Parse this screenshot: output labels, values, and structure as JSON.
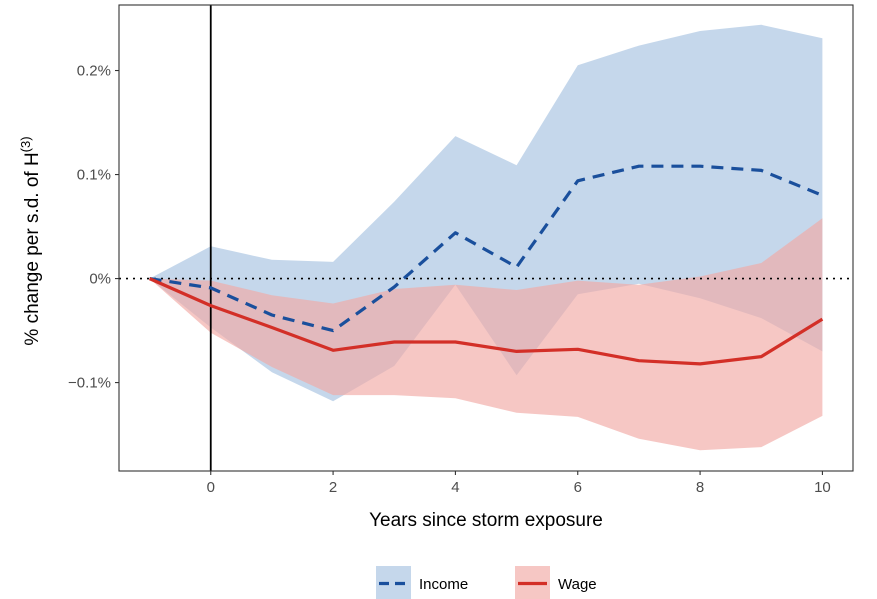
{
  "chart_data": {
    "type": "line",
    "xlabel": "Years since storm exposure",
    "ylabel_main": "% change per s.d. of H",
    "ylabel_sup": "(3)",
    "xlim": [
      -1.5,
      10.5
    ],
    "ylim": [
      -0.185,
      0.263
    ],
    "x_ticks": [
      0,
      2,
      4,
      6,
      8,
      10
    ],
    "y_ticks": [
      {
        "value": 0.2,
        "label": "0.2%"
      },
      {
        "value": 0.1,
        "label": "0.1%"
      },
      {
        "value": 0.0,
        "label": "0%"
      },
      {
        "value": -0.1,
        "label": "−0.1%"
      }
    ],
    "reference_lines": {
      "horizontal_dotted_at": 0,
      "vertical_solid_at": 0
    },
    "legend_position": "bottom",
    "series": [
      {
        "name": "Income",
        "line_style": "dashed",
        "color": "#1a4f9c",
        "band_color": "#a7c2e0",
        "x": [
          -1,
          0,
          1,
          2,
          3,
          4,
          5,
          6,
          7,
          8,
          9,
          10
        ],
        "y": [
          0.0,
          -0.009,
          -0.035,
          -0.05,
          -0.008,
          0.044,
          0.011,
          0.094,
          0.108,
          0.108,
          0.104,
          0.08
        ],
        "lower": [
          0.0,
          -0.047,
          -0.09,
          -0.118,
          -0.084,
          -0.006,
          -0.093,
          -0.015,
          -0.005,
          -0.019,
          -0.038,
          -0.07
        ],
        "upper": [
          0.0,
          0.031,
          0.018,
          0.016,
          0.074,
          0.137,
          0.109,
          0.205,
          0.224,
          0.238,
          0.244,
          0.231
        ]
      },
      {
        "name": "Wage",
        "line_style": "solid",
        "color": "#d32f27",
        "band_color": "#f2aaa6",
        "x": [
          -1,
          0,
          1,
          2,
          3,
          4,
          5,
          6,
          7,
          8,
          9,
          10
        ],
        "y": [
          0.0,
          -0.026,
          -0.047,
          -0.069,
          -0.061,
          -0.061,
          -0.07,
          -0.068,
          -0.079,
          -0.082,
          -0.075,
          -0.039
        ],
        "lower": [
          0.0,
          -0.052,
          -0.085,
          -0.112,
          -0.112,
          -0.115,
          -0.129,
          -0.133,
          -0.154,
          -0.165,
          -0.162,
          -0.132
        ],
        "upper": [
          0.0,
          -0.002,
          -0.016,
          -0.024,
          -0.01,
          -0.006,
          -0.011,
          -0.002,
          -0.006,
          0.002,
          0.015,
          0.058
        ]
      }
    ]
  }
}
